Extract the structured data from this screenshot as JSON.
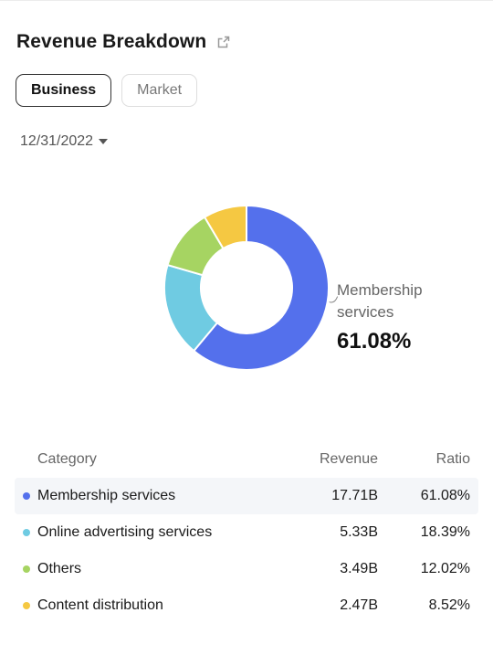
{
  "header": {
    "title": "Revenue Breakdown",
    "share_icon": "share-icon"
  },
  "tabs": [
    {
      "label": "Business",
      "active": true
    },
    {
      "label": "Market",
      "active": false
    }
  ],
  "date_selector": {
    "value": "12/31/2022"
  },
  "callout": {
    "label": "Membership services",
    "value": "61.08%"
  },
  "table": {
    "headers": {
      "category": "Category",
      "revenue": "Revenue",
      "ratio": "Ratio"
    },
    "rows": [
      {
        "category": "Membership services",
        "revenue": "17.71B",
        "ratio": "61.08%",
        "color": "#5470EC"
      },
      {
        "category": "Online advertising services",
        "revenue": "5.33B",
        "ratio": "18.39%",
        "color": "#6FCBE2"
      },
      {
        "category": "Others",
        "revenue": "3.49B",
        "ratio": "12.02%",
        "color": "#A6D462"
      },
      {
        "category": "Content distribution",
        "revenue": "2.47B",
        "ratio": "8.52%",
        "color": "#F5C842"
      }
    ]
  },
  "chart_data": {
    "type": "pie",
    "categories": [
      "Membership services",
      "Online advertising services",
      "Others",
      "Content distribution"
    ],
    "values": [
      61.08,
      18.39,
      12.02,
      8.52
    ],
    "revenue": [
      17.71,
      5.33,
      3.49,
      2.47
    ],
    "colors": [
      "#5470EC",
      "#6FCBE2",
      "#A6D462",
      "#F5C842"
    ],
    "donut": true,
    "highlighted": "Membership services"
  }
}
